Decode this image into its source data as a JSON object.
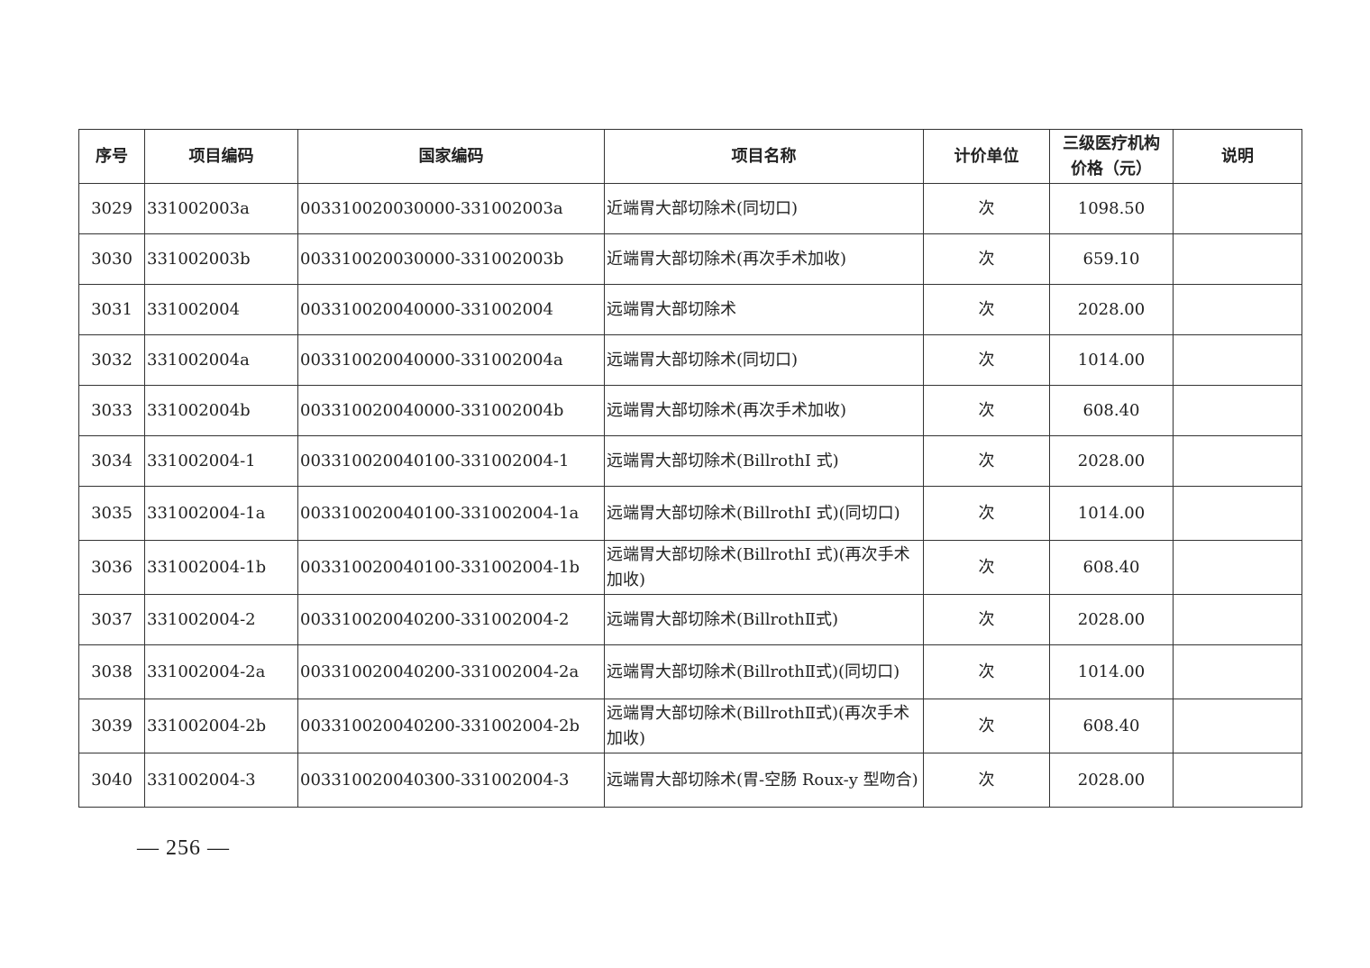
{
  "table": {
    "headers": [
      "序号",
      "项目编码",
      "国家编码",
      "项目名称",
      "计价单位",
      "三级医疗机构价格（元）",
      "说明"
    ],
    "rows": [
      {
        "no": "3029",
        "code": "331002003a",
        "national": "003310020030000-331002003a",
        "name": "近端胃大部切除术(同切口)",
        "unit": "次",
        "price": "1098.50",
        "note": ""
      },
      {
        "no": "3030",
        "code": "331002003b",
        "national": "003310020030000-331002003b",
        "name": "近端胃大部切除术(再次手术加收)",
        "unit": "次",
        "price": "659.10",
        "note": ""
      },
      {
        "no": "3031",
        "code": "331002004",
        "national": "003310020040000-331002004",
        "name": "远端胃大部切除术",
        "unit": "次",
        "price": "2028.00",
        "note": ""
      },
      {
        "no": "3032",
        "code": "331002004a",
        "national": "003310020040000-331002004a",
        "name": "远端胃大部切除术(同切口)",
        "unit": "次",
        "price": "1014.00",
        "note": ""
      },
      {
        "no": "3033",
        "code": "331002004b",
        "national": "003310020040000-331002004b",
        "name": "远端胃大部切除术(再次手术加收)",
        "unit": "次",
        "price": "608.40",
        "note": ""
      },
      {
        "no": "3034",
        "code": "331002004-1",
        "national": "003310020040100-331002004-1",
        "name": "远端胃大部切除术(BillrothI 式)",
        "unit": "次",
        "price": "2028.00",
        "note": ""
      },
      {
        "no": "3035",
        "code": "331002004-1a",
        "national": "003310020040100-331002004-1a",
        "name": "远端胃大部切除术(BillrothI 式)(同切口)",
        "unit": "次",
        "price": "1014.00",
        "note": ""
      },
      {
        "no": "3036",
        "code": "331002004-1b",
        "national": "003310020040100-331002004-1b",
        "name": "远端胃大部切除术(BillrothI 式)(再次手术加收)",
        "unit": "次",
        "price": "608.40",
        "note": ""
      },
      {
        "no": "3037",
        "code": "331002004-2",
        "national": "003310020040200-331002004-2",
        "name": "远端胃大部切除术(BillrothⅡ式)",
        "unit": "次",
        "price": "2028.00",
        "note": ""
      },
      {
        "no": "3038",
        "code": "331002004-2a",
        "national": "003310020040200-331002004-2a",
        "name": "远端胃大部切除术(BillrothⅡ式)(同切口)",
        "unit": "次",
        "price": "1014.00",
        "note": ""
      },
      {
        "no": "3039",
        "code": "331002004-2b",
        "national": "003310020040200-331002004-2b",
        "name": "远端胃大部切除术(BillrothⅡ式)(再次手术加收)",
        "unit": "次",
        "price": "608.40",
        "note": ""
      },
      {
        "no": "3040",
        "code": "331002004-3",
        "national": "003310020040300-331002004-3",
        "name": "远端胃大部切除术(胃-空肠 Roux-y 型吻合)",
        "unit": "次",
        "price": "2028.00",
        "note": ""
      }
    ]
  },
  "page_number": "— 256 —"
}
